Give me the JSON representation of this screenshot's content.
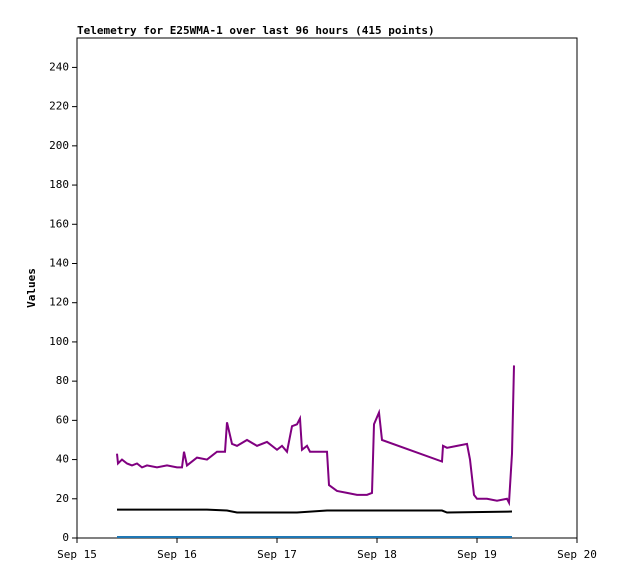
{
  "chart_data": {
    "type": "line",
    "title": "Telemetry for E25WMA-1 over last 96 hours (415 points)",
    "y_label": "Values",
    "xlim": [
      15,
      20
    ],
    "xticks": [
      {
        "value": 15,
        "label": "Sep 15"
      },
      {
        "value": 16,
        "label": "Sep 16"
      },
      {
        "value": 17,
        "label": "Sep 17"
      },
      {
        "value": 18,
        "label": "Sep 18"
      },
      {
        "value": 19,
        "label": "Sep 19"
      },
      {
        "value": 20,
        "label": "Sep 20"
      }
    ],
    "ylim": [
      0,
      255
    ],
    "yticks": [
      0,
      20,
      40,
      60,
      80,
      100,
      120,
      140,
      160,
      180,
      200,
      220,
      240
    ],
    "series": [
      {
        "color": "#800080",
        "x": [
          15.4,
          15.41,
          15.45,
          15.5,
          15.55,
          15.6,
          15.65,
          15.7,
          15.8,
          15.9,
          16.0,
          16.05,
          16.07,
          16.1,
          16.2,
          16.3,
          16.4,
          16.48,
          16.5,
          16.55,
          16.6,
          16.7,
          16.8,
          16.9,
          17.0,
          17.05,
          17.1,
          17.15,
          17.2,
          17.23,
          17.25,
          17.3,
          17.33,
          17.45,
          17.5,
          17.52,
          17.6,
          17.7,
          17.8,
          17.9,
          17.95,
          17.97,
          18.02,
          18.05,
          18.65,
          18.66,
          18.7,
          18.8,
          18.9,
          18.93,
          18.97,
          19.0,
          19.1,
          19.2,
          19.3,
          19.32,
          19.35,
          19.37
        ],
        "values": [
          43,
          38,
          40,
          38,
          37,
          38,
          36,
          37,
          36,
          37,
          36,
          36,
          44,
          37,
          41,
          40,
          44,
          44,
          59,
          48,
          47,
          50,
          47,
          49,
          45,
          47,
          44,
          57,
          58,
          61,
          45,
          47,
          44,
          44,
          44,
          27,
          24,
          23,
          22,
          22,
          23,
          58,
          64,
          50,
          39,
          47,
          46,
          47,
          48,
          40,
          22,
          20,
          20,
          19,
          20,
          18,
          43,
          88
        ]
      },
      {
        "color": "#000000",
        "x": [
          15.4,
          16.3,
          16.5,
          16.6,
          17.2,
          17.5,
          18.0,
          18.65,
          18.7,
          19.35
        ],
        "values": [
          14.5,
          14.5,
          14,
          13,
          13,
          14,
          14,
          14,
          13,
          13.5
        ]
      },
      {
        "color": "#1f77b4",
        "x": [
          15.4,
          19.35
        ],
        "values": [
          0.5,
          0.5
        ]
      }
    ]
  }
}
